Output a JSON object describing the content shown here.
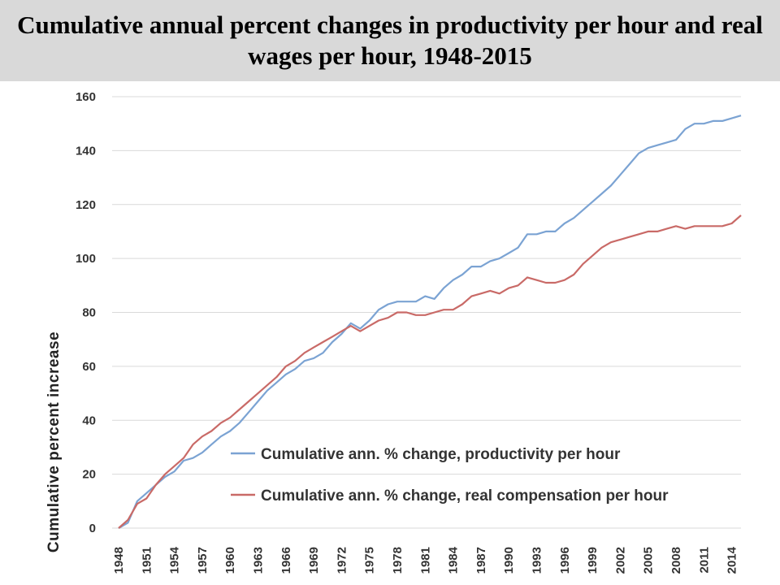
{
  "title": "Cumulative annual percent changes in productivity per hour and real wages per hour, 1948-2015",
  "chart_data": {
    "type": "line",
    "title": "Cumulative annual percent changes in productivity per hour and real wages per hour, 1948-2015",
    "xlabel": "",
    "ylabel": "Cumulative percent increase",
    "xlim": [
      1948,
      2015
    ],
    "ylim": [
      0,
      160
    ],
    "yticks": [
      0,
      20,
      40,
      60,
      80,
      100,
      120,
      140,
      160
    ],
    "xtick_labels": [
      "1948",
      "1951",
      "1954",
      "1957",
      "1960",
      "1963",
      "1966",
      "1969",
      "1972",
      "1975",
      "1978",
      "1981",
      "1984",
      "1987",
      "1990",
      "1993",
      "1996",
      "1999",
      "2002",
      "2005",
      "2008",
      "2011",
      "2014"
    ],
    "grid": "horizontal",
    "legend_position": "bottom-right",
    "series": [
      {
        "name": "Cumulative ann. % change, productivity per hour",
        "color": "#7ba3d3",
        "x": [
          1948,
          1949,
          1950,
          1951,
          1952,
          1953,
          1954,
          1955,
          1956,
          1957,
          1958,
          1959,
          1960,
          1961,
          1962,
          1963,
          1964,
          1965,
          1966,
          1967,
          1968,
          1969,
          1970,
          1971,
          1972,
          1973,
          1974,
          1975,
          1976,
          1977,
          1978,
          1979,
          1980,
          1981,
          1982,
          1983,
          1984,
          1985,
          1986,
          1987,
          1988,
          1989,
          1990,
          1991,
          1992,
          1993,
          1994,
          1995,
          1996,
          1997,
          1998,
          1999,
          2000,
          2001,
          2002,
          2003,
          2004,
          2005,
          2006,
          2007,
          2008,
          2009,
          2010,
          2011,
          2012,
          2013,
          2014,
          2015
        ],
        "values": [
          0,
          2,
          10,
          13,
          16,
          19,
          21,
          25,
          26,
          28,
          31,
          34,
          36,
          39,
          43,
          47,
          51,
          54,
          57,
          59,
          62,
          63,
          65,
          69,
          72,
          76,
          74,
          77,
          81,
          83,
          84,
          84,
          84,
          86,
          85,
          89,
          92,
          94,
          97,
          97,
          99,
          100,
          102,
          104,
          109,
          109,
          110,
          110,
          113,
          115,
          118,
          121,
          124,
          127,
          131,
          135,
          139,
          141,
          142,
          143,
          144,
          148,
          150,
          150,
          151,
          151,
          152,
          153
        ]
      },
      {
        "name": "Cumulative ann. % change, real compensation per hour",
        "color": "#c96a67",
        "x": [
          1948,
          1949,
          1950,
          1951,
          1952,
          1953,
          1954,
          1955,
          1956,
          1957,
          1958,
          1959,
          1960,
          1961,
          1962,
          1963,
          1964,
          1965,
          1966,
          1967,
          1968,
          1969,
          1970,
          1971,
          1972,
          1973,
          1974,
          1975,
          1976,
          1977,
          1978,
          1979,
          1980,
          1981,
          1982,
          1983,
          1984,
          1985,
          1986,
          1987,
          1988,
          1989,
          1990,
          1991,
          1992,
          1993,
          1994,
          1995,
          1996,
          1997,
          1998,
          1999,
          2000,
          2001,
          2002,
          2003,
          2004,
          2005,
          2006,
          2007,
          2008,
          2009,
          2010,
          2011,
          2012,
          2013,
          2014,
          2015
        ],
        "values": [
          0,
          3,
          9,
          11,
          16,
          20,
          23,
          26,
          31,
          34,
          36,
          39,
          41,
          44,
          47,
          50,
          53,
          56,
          60,
          62,
          65,
          67,
          69,
          71,
          73,
          75,
          73,
          75,
          77,
          78,
          80,
          80,
          79,
          79,
          80,
          81,
          81,
          83,
          86,
          87,
          88,
          87,
          89,
          90,
          93,
          92,
          91,
          91,
          92,
          94,
          98,
          101,
          104,
          106,
          107,
          108,
          109,
          110,
          110,
          111,
          112,
          111,
          112,
          112,
          112,
          112,
          113,
          116
        ]
      }
    ]
  }
}
